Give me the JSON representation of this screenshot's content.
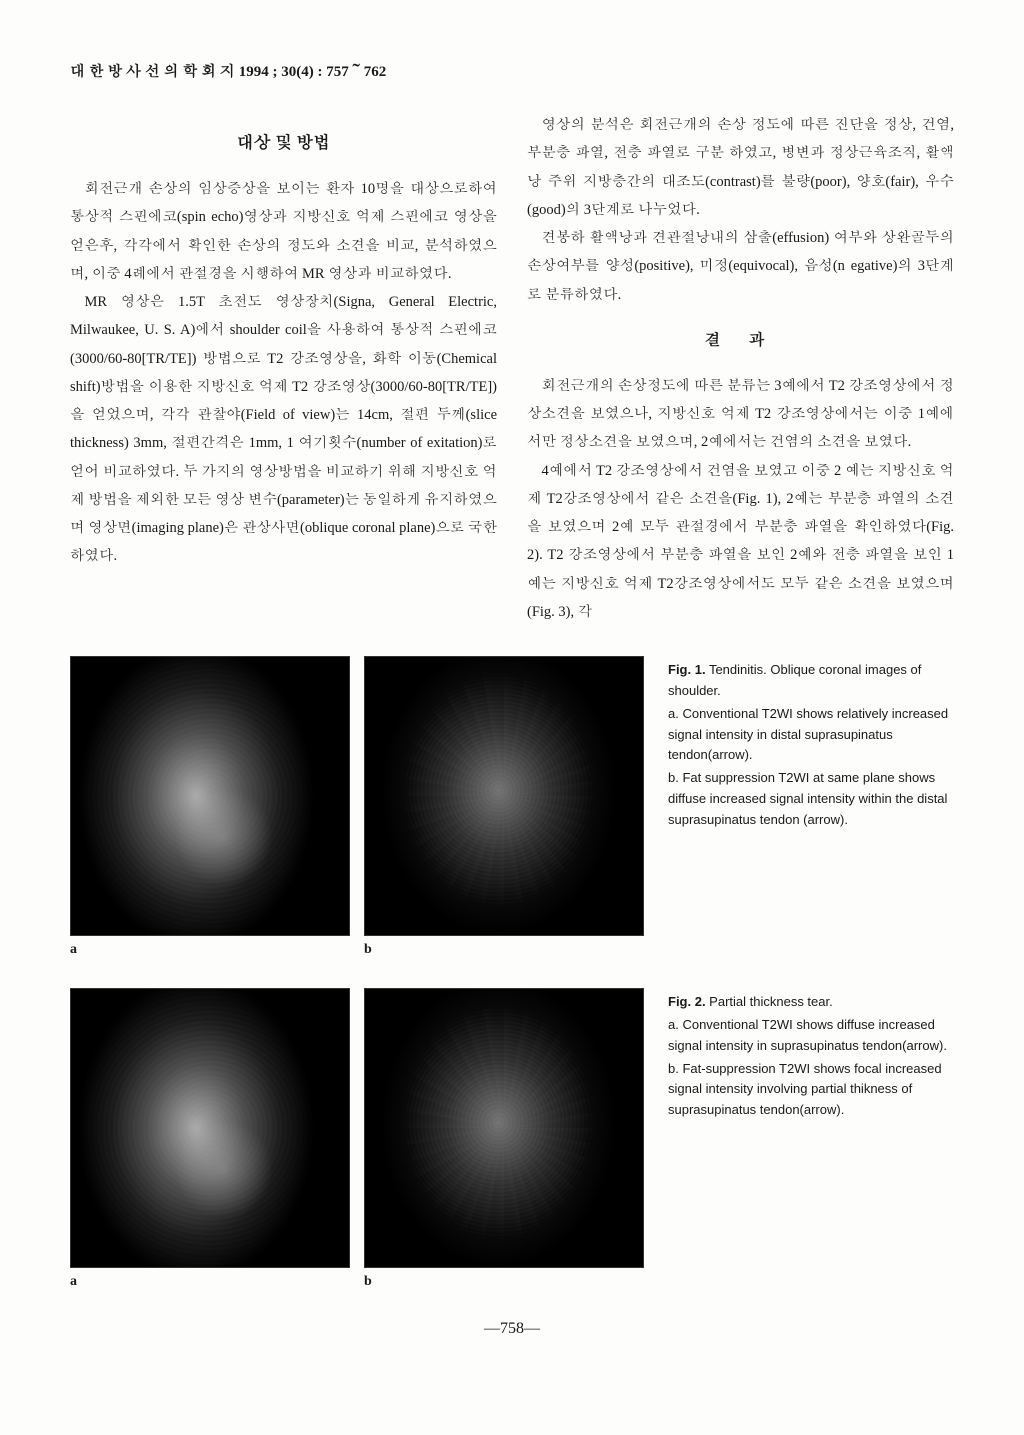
{
  "header": "대 한 방 사 선 의 학 회 지 1994 ; 30(4) : 757～762",
  "left": {
    "title": "대상 및 방법",
    "p1": "회전근개 손상의 임상증상을 보이는 환자 10명을 대상으로하여 통상적 스핀에코(spin echo)영상과 지방신호 억제 스핀에코 영상을 얻은후, 각각에서 확인한 손상의 정도와 소견을 비교, 분석하였으며, 이중 4례에서 관절경을 시행하여 MR 영상과 비교하였다.",
    "p2": "MR 영상은 1.5T 초전도 영상장치(Signa, General Electric, Milwaukee, U. S. A)에서 shoulder coil을 사용하여 통상적 스핀에코(3000/60-80[TR/TE]) 방법으로 T2 강조영상을, 화학 이동(Chemical shift)방법을 이용한 지방신호 억제 T2 강조영상(3000/60-80[TR/TE])을 얻었으며, 각각 관찰야(Field of view)는 14cm, 절편 두께(slice thickness) 3mm, 절편간격은 1mm, 1 여기횟수(number of exitation)로 얻어 비교하였다. 두 가지의 영상방법을 비교하기 위해 지방신호 억제 방법을 제외한 모든 영상 변수(parameter)는 동일하게 유지하였으며 영상면(imaging plane)은 관상사면(oblique coronal plane)으로 국한하였다."
  },
  "right": {
    "p1": "영상의 분석은 회전근개의 손상 정도에 따른 진단을 정상, 건염, 부분층 파열, 전층 파열로 구분 하였고, 병변과 정상근육조직, 활액낭 주위 지방층간의 대조도(contrast)를 불량(poor), 양호(fair), 우수(good)의 3단계로 나누었다.",
    "p2": "견봉하 활액낭과 견관절낭내의 삼출(effusion) 여부와 상완골두의 손상여부를 양성(positive), 미정(equivocal), 음성(n egative)의 3단계로 분류하였다.",
    "title": "결    과",
    "p3": "회전근개의 손상정도에 따른 분류는 3예에서 T2 강조영상에서 정상소견을 보였으나, 지방신호 억제 T2 강조영상에서는 이중 1예에서만 정상소견을 보였으며, 2예에서는 건염의 소견을 보였다.",
    "p4": "4예에서 T2 강조영상에서 건염을 보였고 이중 2 예는 지방신호 억제 T2강조영상에서 같은 소견을(Fig. 1), 2예는 부분층 파열의 소견을 보였으며 2예 모두 관절경에서 부분층 파열을 확인하였다(Fig. 2). T2 강조영상에서 부분층 파열을 보인 2예와 전층 파열을 보인 1예는 지방신호 억제 T2강조영상에서도 모두 같은 소견을 보였으며(Fig. 3), 각"
  },
  "fig1": {
    "labelA": "a",
    "labelB": "b",
    "title": "Fig. 1.",
    "titleText": " Tendinitis. Oblique coronal images of shoulder.",
    "a": "a. Conventional T2WI shows relatively increased signal intensity in distal suprasupinatus tendon(arrow).",
    "b": "b. Fat suppression T2WI at same plane shows diffuse increased signal intensity within the distal suprasupinatus tendon (arrow)."
  },
  "fig2": {
    "labelA": "a",
    "labelB": "b",
    "title": "Fig. 2.",
    "titleText": " Partial thickness tear.",
    "a": "a. Conventional T2WI shows diffuse increased signal intensity in suprasupinatus tendon(arrow).",
    "b": "b. Fat-suppression T2WI shows focal increased signal intensity involving partial thikness of suprasupinatus tendon(arrow)."
  },
  "pageNumber": "—758—"
}
